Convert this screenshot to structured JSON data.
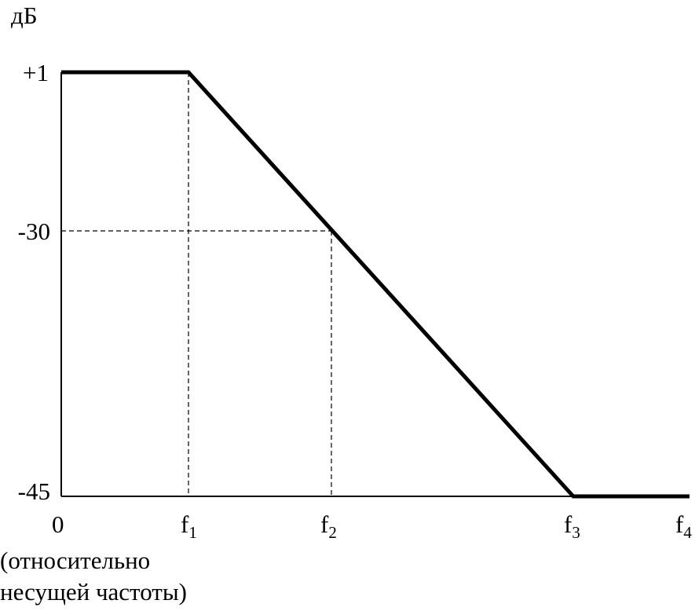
{
  "axis": {
    "y_unit": "дБ",
    "y_labels": [
      "+1",
      "-30",
      "-45"
    ],
    "x_labels": [
      {
        "base": "0"
      },
      {
        "base": "f",
        "sub": "1"
      },
      {
        "base": "f",
        "sub": "2"
      },
      {
        "base": "f",
        "sub": "3"
      },
      {
        "base": "f",
        "sub": "4"
      }
    ],
    "x_note": [
      "(относительно",
      "несущей частоты)"
    ]
  }
}
